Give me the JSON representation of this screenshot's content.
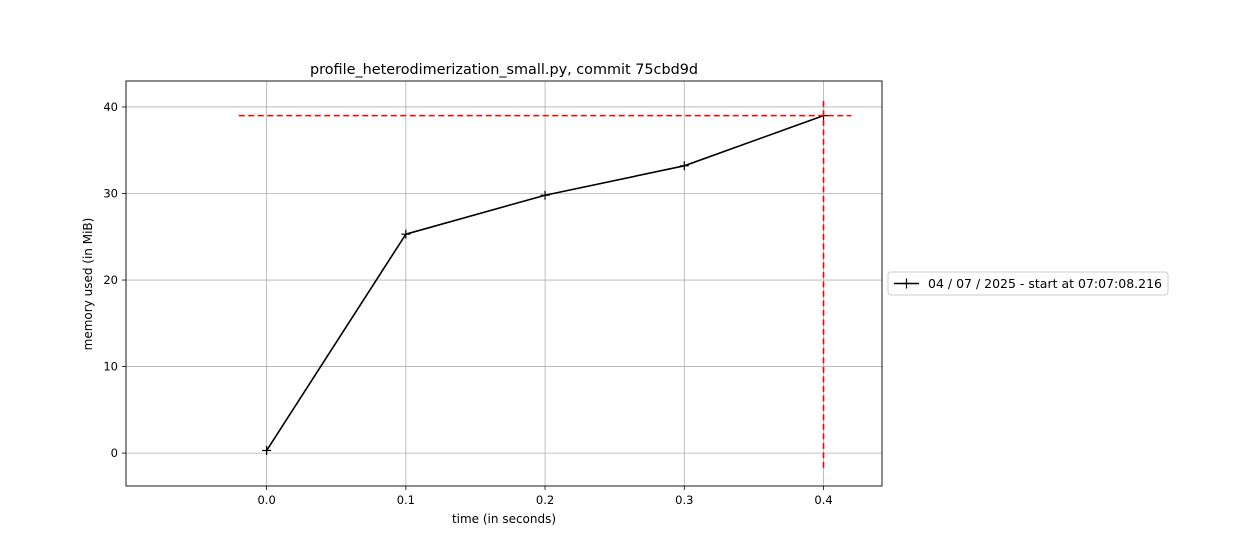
{
  "chart_data": {
    "type": "line",
    "title": "profile_heterodimerization_small.py, commit 75cbd9d",
    "xlabel": "time (in seconds)",
    "ylabel": "memory used (in MiB)",
    "xlim": [
      -0.101,
      0.442
    ],
    "ylim": [
      -3.8,
      43.0
    ],
    "xticks": [
      0.0,
      0.1,
      0.2,
      0.3,
      0.4
    ],
    "xtick_labels": [
      "0.0",
      "0.1",
      "0.2",
      "0.3",
      "0.4"
    ],
    "yticks": [
      0,
      10,
      20,
      30,
      40
    ],
    "ytick_labels": [
      "0",
      "10",
      "20",
      "30",
      "40"
    ],
    "grid": true,
    "series": [
      {
        "name": "04 / 07 / 2025 - start at 07:07:08.216",
        "color": "#000000",
        "marker": "+",
        "x": [
          0.0,
          0.1,
          0.2,
          0.3,
          0.4
        ],
        "y": [
          0.3,
          25.3,
          29.8,
          33.2,
          39.0
        ]
      }
    ],
    "annotations": {
      "max_memory_hline": {
        "y": 39.0,
        "x_from": -0.02,
        "x_to": 0.42,
        "color": "#ff0000",
        "style": "dashed"
      },
      "max_memory_vline": {
        "x": 0.4,
        "y_from": -1.7,
        "y_to": 41.0,
        "color": "#ff0000",
        "style": "dashed"
      }
    },
    "legend_position": "outside-right"
  }
}
